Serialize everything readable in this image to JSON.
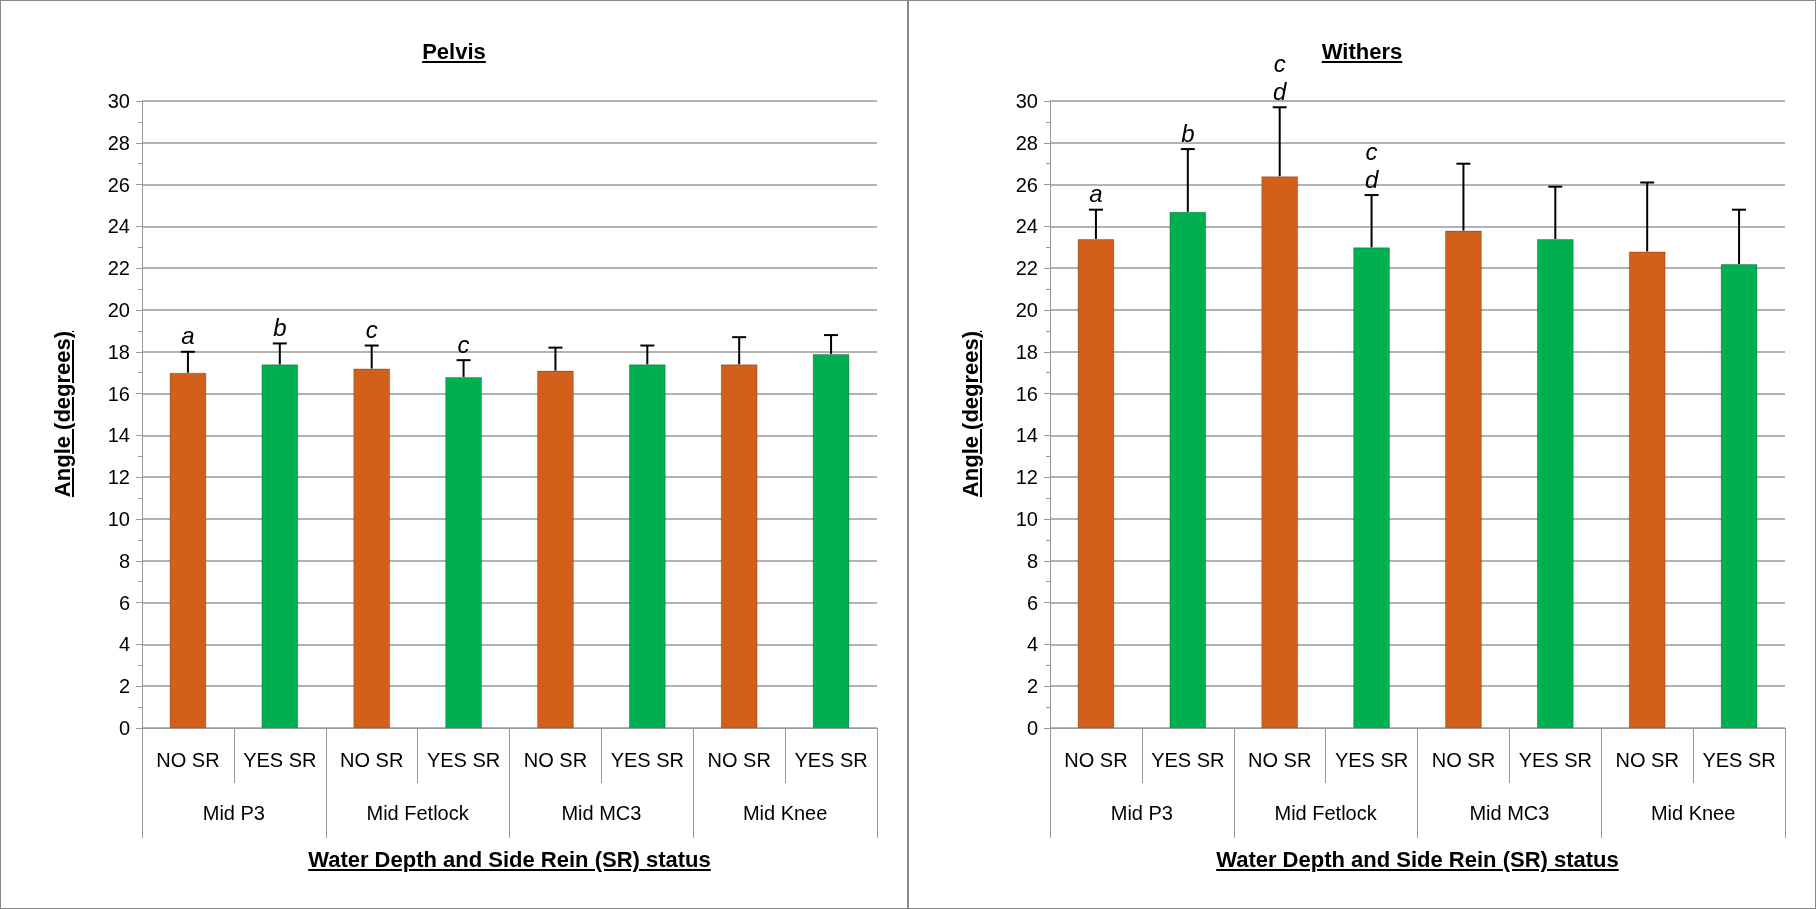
{
  "chart_data": [
    {
      "type": "bar",
      "title": "Pelvis",
      "xlabel": "Water Depth and Side Rein (SR) status",
      "ylabel": "Angle (degrees)",
      "categories": [
        "Mid P3",
        "Mid Fetlock",
        "Mid MC3",
        "Mid Knee"
      ],
      "ylim": [
        0,
        30
      ],
      "yticks": [
        0,
        2,
        4,
        6,
        8,
        10,
        12,
        14,
        16,
        18,
        20,
        22,
        24,
        26,
        28,
        30
      ],
      "grid": "y",
      "legend": false,
      "series": [
        {
          "name": "NO SR",
          "color": "#d2601a",
          "values": [
            17.0,
            17.2,
            17.1,
            17.4
          ],
          "errors": [
            1.0,
            1.1,
            1.1,
            1.3
          ],
          "value_labels": [
            "a",
            "c",
            null,
            null
          ]
        },
        {
          "name": "YES SR",
          "color": "#00b050",
          "values": [
            17.4,
            16.8,
            17.4,
            17.9
          ],
          "errors": [
            1.0,
            0.8,
            0.9,
            0.9
          ],
          "value_labels": [
            "b",
            "c",
            null,
            null
          ]
        }
      ]
    },
    {
      "type": "bar",
      "title": "Withers",
      "xlabel": "Water Depth and Side Rein (SR) status",
      "ylabel": "Angle (degrees)",
      "categories": [
        "Mid P3",
        "Mid Fetlock",
        "Mid MC3",
        "Mid Knee"
      ],
      "ylim": [
        0,
        30
      ],
      "yticks": [
        0,
        2,
        4,
        6,
        8,
        10,
        12,
        14,
        16,
        18,
        20,
        22,
        24,
        26,
        28,
        30
      ],
      "grid": "y",
      "legend": false,
      "series": [
        {
          "name": "NO SR",
          "color": "#d2601a",
          "values": [
            23.4,
            26.4,
            23.8,
            22.8
          ],
          "errors": [
            1.4,
            3.3,
            3.2,
            3.3
          ],
          "value_labels": [
            "a",
            "c\nd",
            null,
            null
          ]
        },
        {
          "name": "YES SR",
          "color": "#00b050",
          "values": [
            24.7,
            23.0,
            23.4,
            22.2
          ],
          "errors": [
            3.0,
            2.5,
            2.5,
            2.6
          ],
          "value_labels": [
            "b",
            "c\nd",
            null,
            null
          ]
        }
      ]
    }
  ]
}
